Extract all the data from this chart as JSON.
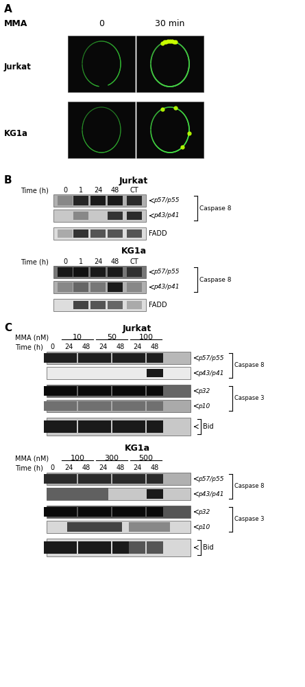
{
  "panel_A_label": "A",
  "panel_B_label": "B",
  "panel_C_label": "C",
  "MMA_label": "MMA",
  "time_0": "0",
  "time_30min": "30 min",
  "Jurkat_label": "Jurkat",
  "KGla_label": "KG1a",
  "time_h_label": "Time (h)",
  "time_points_B": [
    "0",
    "1",
    "24",
    "48",
    "CT"
  ],
  "MMA_nM_label": "MMA (nM)",
  "Jurkat_C_concentrations": [
    "10",
    "50",
    "100"
  ],
  "KGla_C_concentrations": [
    "100",
    "300",
    "500"
  ],
  "p57p55_label": "p57/p55",
  "p43p41_label": "p43/p41",
  "FADD_label": "FADD",
  "p32_label": "p32",
  "p10_label": "p10",
  "Bid_label": "Bid",
  "Caspase8_label": "Caspase 8",
  "Caspase3_label": "Caspase 3",
  "bg_color": "#ffffff"
}
